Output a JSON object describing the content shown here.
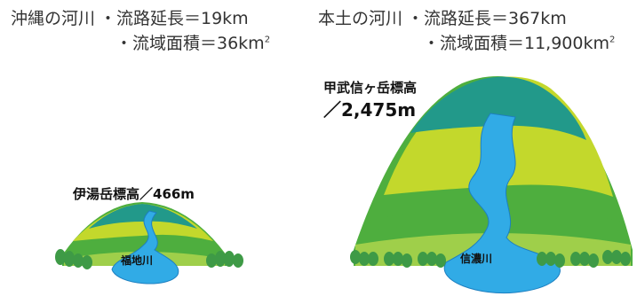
{
  "okinawa": {
    "title": "沖縄の河川",
    "length_line": "・流路延長＝19km",
    "area_line": "・流域面積＝36km",
    "area_exp": "2",
    "peak_label": "伊湯岳標高／466m",
    "river_name": "福地川"
  },
  "mainland": {
    "title": "本土の河川",
    "length_line": "・流路延長＝367km",
    "area_line": "・流域面積＝11,900km",
    "area_exp": "2",
    "peak_label_1": "甲武信ヶ岳標高",
    "peak_label_2": "／2,475m",
    "river_name": "信濃川"
  },
  "colors": {
    "teal": "#22998a",
    "yellow_green": "#c3d82c",
    "green": "#4eae3e",
    "light_green": "#9fcf4a",
    "river": "#31abe6",
    "river_edge": "#1d7fc0",
    "tree": "#3e9a46"
  }
}
